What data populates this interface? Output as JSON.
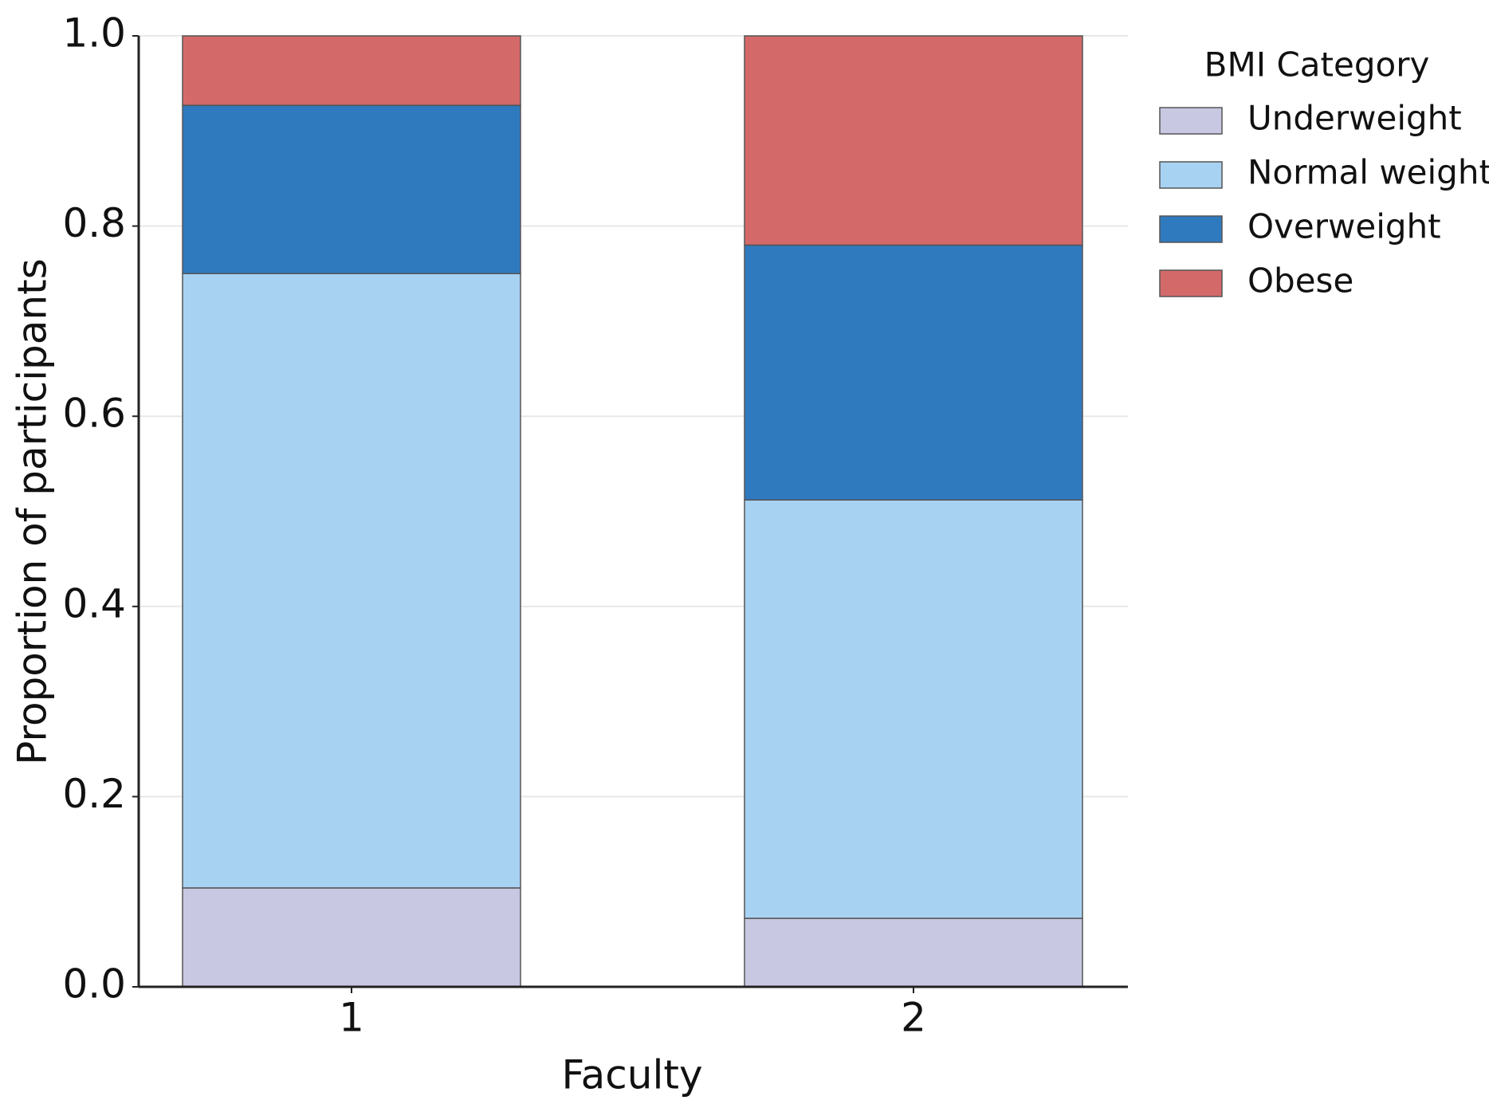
{
  "chart_data": {
    "type": "stacked_bar",
    "x_label": "Faculty",
    "y_label": "Proportion of participants",
    "categories": [
      "1",
      "2"
    ],
    "series": [
      {
        "name": "Underweight",
        "color": "#c8c8e2",
        "values": [
          0.104,
          0.072
        ]
      },
      {
        "name": "Normal weight",
        "color": "#a8d2f2",
        "values": [
          0.646,
          0.44
        ]
      },
      {
        "name": "Overweight",
        "color": "#2f7abf",
        "values": [
          0.177,
          0.268
        ]
      },
      {
        "name": "Obese",
        "color": "#d4696a",
        "values": [
          0.073,
          0.22
        ]
      }
    ],
    "ylim": [
      0,
      1
    ],
    "yticks": [
      {
        "value": 0,
        "label": "0.0"
      },
      {
        "value": 0.2,
        "label": "0.2"
      },
      {
        "value": 0.4,
        "label": "0.4"
      },
      {
        "value": 0.6,
        "label": "0.6"
      },
      {
        "value": 0.8,
        "label": "0.8"
      },
      {
        "value": 1,
        "label": "1.0"
      }
    ],
    "grid": true,
    "legend_title": "BMI Category",
    "legend": "right"
  }
}
